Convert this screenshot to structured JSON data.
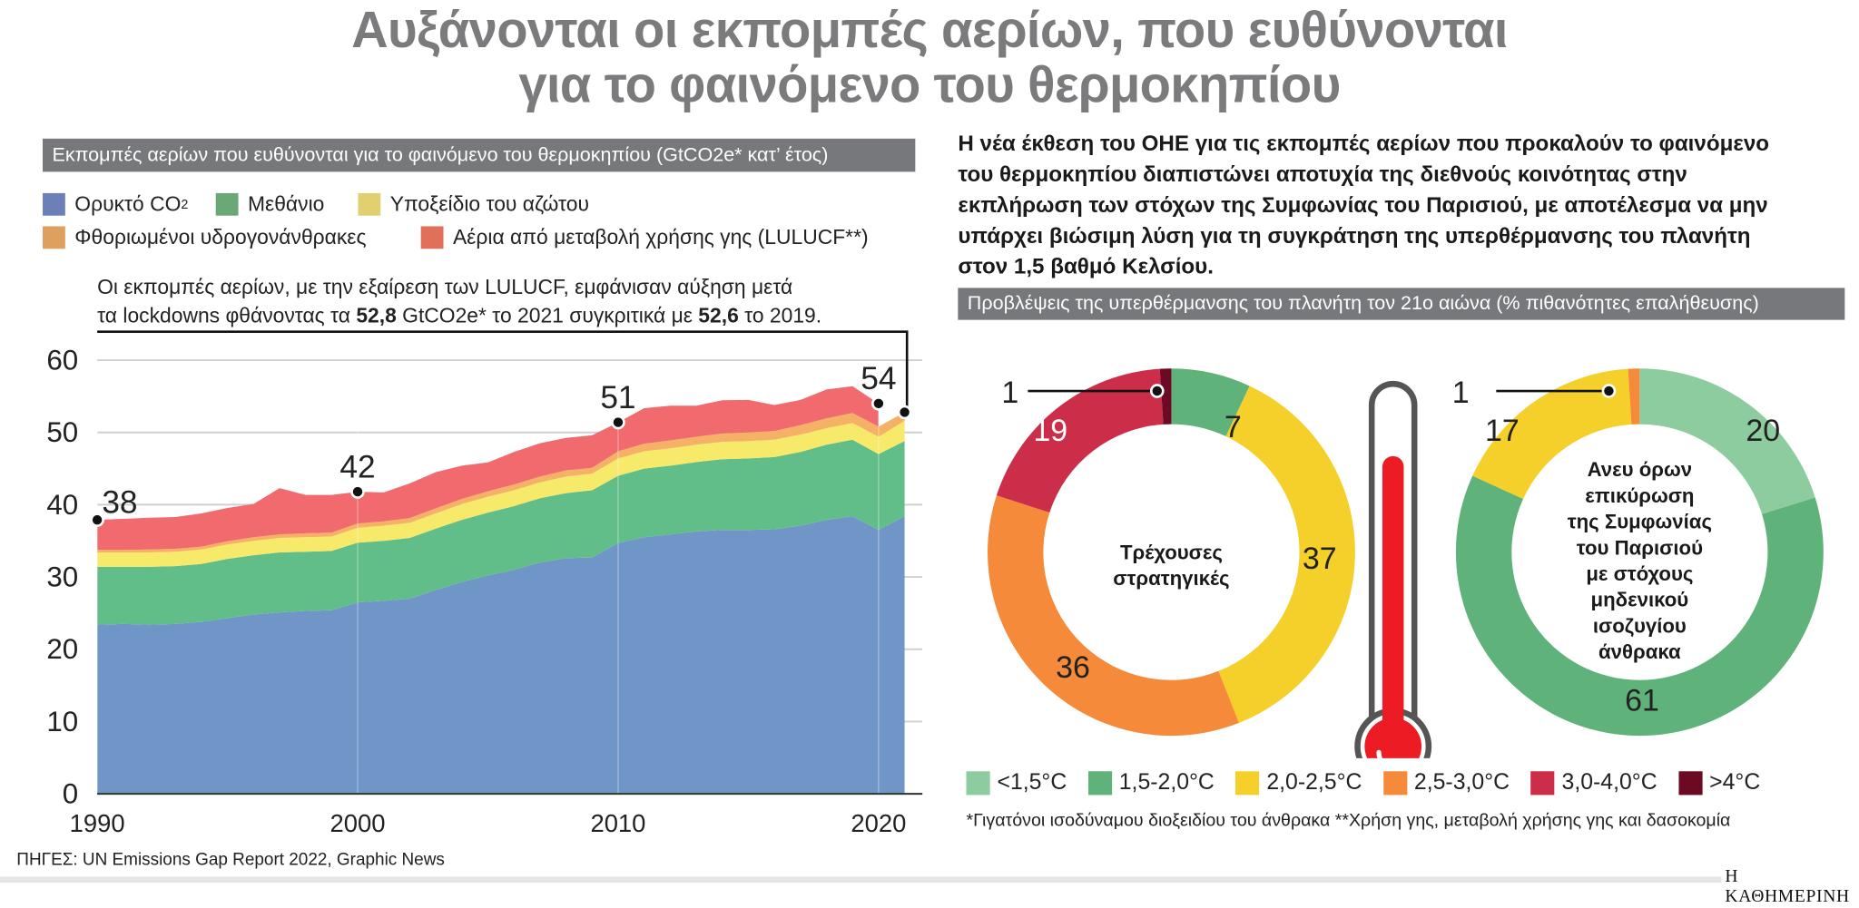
{
  "title_lines": [
    "Αυξάνονται οι εκπομπές αερίων, που ευθύνονται",
    "για το φαινόμενο του θερμοκηπίου"
  ],
  "left_panel": {
    "header": "Εκπομπές αερίων που ευθύνονται για το φαινόμενο του θερμοκηπίου (GtCO2e* κατ’ έτος)",
    "annotation": {
      "line1": "Οι εκπομπές αερίων, με την εξαίρεση των LULUCF, εμφάνισαν αύξηση μετά",
      "line2_a": "τα lockdowns φθάνοντας τα ",
      "line2_b": "52,8",
      "line2_c": " GtCO2e* το 2021 συγκριτικά με ",
      "line2_d": "52,6",
      "line2_e": " το 2019."
    }
  },
  "right_panel": {
    "paragraph_lines": [
      "Η νέα έκθεση του ΟΗΕ για τις εκπομπές αερίων που προκαλούν το φαινόμενο",
      "του θερμοκηπίου διαπιστώνει αποτυχία της διεθνούς κοινότητας στην",
      "εκπλήρωση των στόχων της Συμφωνίας του Παρισιού, με αποτέλεσμα να μην",
      "υπάρχει βιώσιμη λύση για τη συγκράτηση της υπερθέρμανσης του πλανήτη",
      "στον 1,5 βαθμό Κελσίου."
    ],
    "header": "Προβλέψεις της υπερθέρμανσης του πλανήτη τον 21ο αιώνα (% πιθανότητες επαλήθευσης)",
    "thermometer_icon": "thermometer-icon"
  },
  "chart_data": [
    {
      "type": "area",
      "stacked": true,
      "title": "Εκπομπές αερίων που ευθύνονται για το φαινόμενο του θερμοκηπίου (GtCO2e* κατ’ έτος)",
      "x": [
        1990,
        1991,
        1992,
        1993,
        1994,
        1995,
        1996,
        1997,
        1998,
        1999,
        2000,
        2001,
        2002,
        2003,
        2004,
        2005,
        2006,
        2007,
        2008,
        2009,
        2010,
        2011,
        2012,
        2013,
        2014,
        2015,
        2016,
        2017,
        2018,
        2019,
        2020,
        2021
      ],
      "xticks": [
        "1990",
        "2000",
        "2010",
        "2020"
      ],
      "yticks": [
        "0",
        "10",
        "20",
        "30",
        "40",
        "50",
        "60"
      ],
      "ylim": [
        0,
        60
      ],
      "grid": true,
      "legend_position": "top-left",
      "series": [
        {
          "name": "Ορυκτό CO",
          "name_sub": "2",
          "color": "#7096c8",
          "legend_color": "#6d7fb8",
          "values": [
            23.4,
            23.5,
            23.4,
            23.5,
            23.8,
            24.3,
            24.8,
            25.1,
            25.3,
            25.4,
            26.5,
            26.7,
            27.0,
            28.2,
            29.3,
            30.2,
            31.0,
            32.0,
            32.6,
            32.7,
            34.7,
            35.5,
            35.9,
            36.3,
            36.5,
            36.5,
            36.6,
            37.1,
            37.9,
            38.4,
            36.5,
            38.4
          ]
        },
        {
          "name": "Μεθάνιο",
          "color": "#62be88",
          "legend_color": "#6aa878",
          "values": [
            8.0,
            7.9,
            8.0,
            8.0,
            8.0,
            8.2,
            8.2,
            8.3,
            8.2,
            8.2,
            8.25,
            8.3,
            8.4,
            8.5,
            8.6,
            8.7,
            8.8,
            8.9,
            9.0,
            9.3,
            9.3,
            9.5,
            9.5,
            9.6,
            9.8,
            9.9,
            10.0,
            10.2,
            10.4,
            10.6,
            10.5,
            10.4
          ]
        },
        {
          "name": "Υποξείδιο του αζώτου",
          "color": "#f7e96a",
          "legend_color": "#e0d070",
          "values": [
            2.0,
            2.0,
            2.0,
            2.0,
            2.0,
            2.0,
            2.0,
            2.0,
            2.0,
            2.0,
            2.05,
            2.1,
            2.1,
            2.1,
            2.2,
            2.2,
            2.2,
            2.2,
            2.3,
            2.3,
            2.4,
            2.4,
            2.4,
            2.4,
            2.4,
            2.4,
            2.4,
            2.4,
            2.3,
            2.3,
            2.4,
            2.8
          ]
        },
        {
          "name": "Φθοριωμένοι υδρογονάνθρακες",
          "color": "#f5b266",
          "legend_color": "#dea05e",
          "values": [
            0.35,
            0.35,
            0.4,
            0.4,
            0.4,
            0.45,
            0.5,
            0.5,
            0.55,
            0.55,
            0.6,
            0.6,
            0.65,
            0.7,
            0.7,
            0.75,
            0.8,
            0.8,
            0.85,
            0.8,
            1.0,
            1.05,
            1.1,
            1.1,
            1.15,
            1.2,
            1.2,
            1.3,
            1.35,
            1.4,
            1.4,
            1.2
          ]
        },
        {
          "name": "Αέρια από μεταβολή χρήσης γης (LULUCF**)",
          "color": "#f06a6e",
          "legend_color": "#e0705a",
          "values": [
            4.15,
            4.3,
            4.4,
            4.4,
            4.6,
            4.6,
            4.6,
            6.4,
            5.3,
            5.2,
            4.4,
            4.0,
            4.8,
            5.0,
            4.6,
            4.0,
            4.5,
            4.6,
            4.5,
            4.5,
            4.0,
            4.9,
            4.8,
            4.3,
            4.6,
            4.5,
            3.6,
            3.5,
            4.0,
            3.7,
            3.2,
            null
          ]
        }
      ],
      "point_labels": [
        {
          "year": 1990,
          "label": "38"
        },
        {
          "year": 2000,
          "label": "42"
        },
        {
          "year": 2010,
          "label": "51"
        },
        {
          "year": 2020,
          "label": "54"
        },
        {
          "year": 2021,
          "label": ""
        }
      ]
    },
    {
      "type": "pie",
      "donut": true,
      "center_label": [
        "Τρέχουσες",
        "στρατηγικές"
      ],
      "slices": [
        {
          "category": "1,5-2,0°C",
          "value": 7,
          "label": "7"
        },
        {
          "category": "2,0-2,5°C",
          "value": 37,
          "label": "37"
        },
        {
          "category": "2,5-3,0°C",
          "value": 36,
          "label": "36"
        },
        {
          "category": "3,0-4,0°C",
          "value": 19,
          "label": "19"
        },
        {
          "category": ">4°C",
          "value": 1,
          "label": "1"
        }
      ]
    },
    {
      "type": "pie",
      "donut": true,
      "center_label": [
        "Ανευ όρων",
        "επικύρωση",
        "της Συμφωνίας",
        "του Παρισιού",
        "με στόχους",
        "μηδενικού",
        "ισοζυγίου",
        "άνθρακα"
      ],
      "slices": [
        {
          "category": "<1,5°C",
          "value": 20,
          "label": "20"
        },
        {
          "category": "1,5-2,0°C",
          "value": 61,
          "label": "61"
        },
        {
          "category": "2,0-2,5°C",
          "value": 17,
          "label": "17"
        },
        {
          "category": "2,5-3,0°C",
          "value": 1,
          "label": "1"
        }
      ]
    }
  ],
  "temperature_legend": [
    {
      "label": "<1,5°C",
      "color": "#8dcc9f"
    },
    {
      "label": "1,5-2,0°C",
      "color": "#5fb27a"
    },
    {
      "label": "2,0-2,5°C",
      "color": "#f5d02a"
    },
    {
      "label": "2,5-3,0°C",
      "color": "#f48a3a"
    },
    {
      "label": "3,0-4,0°C",
      "color": "#cc2d48"
    },
    {
      "label": ">4°C",
      "color": "#6b0a22"
    }
  ],
  "footnote": "*Γιγατόνοι ισοδύναμου διοξειδίου του άνθρακα **Χρήση γης, μεταβολή χρήσης γης και δασοκομία",
  "source": "ΠΗΓΕΣ: UN Emissions Gap Report 2022, Graphic News",
  "brand": "Η ΚΑΘΗΜΕΡΙΝΗ"
}
